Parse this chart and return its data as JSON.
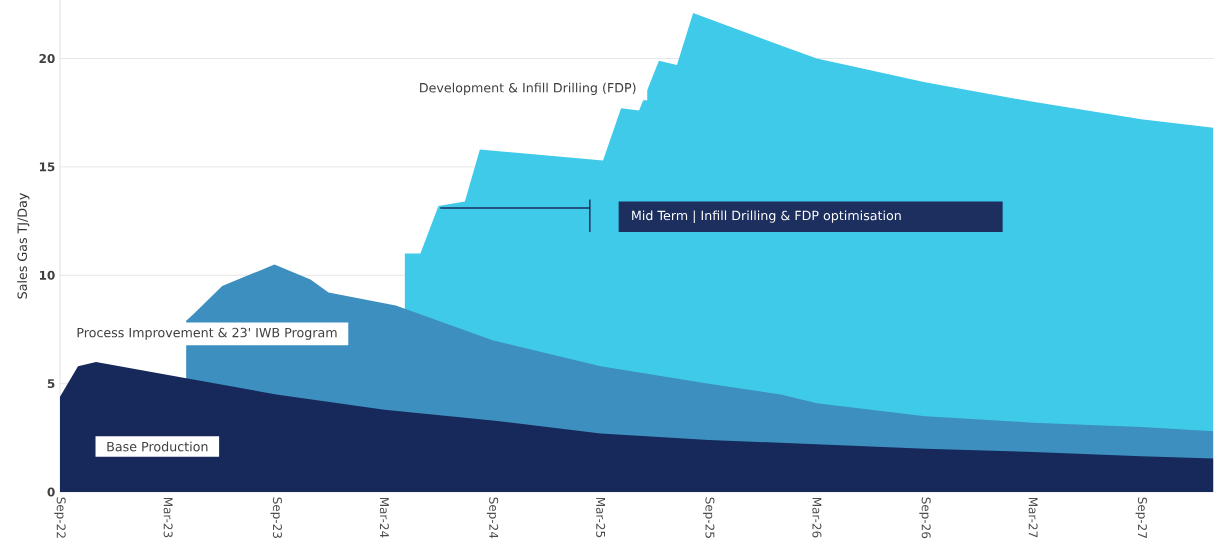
{
  "chart_data": {
    "type": "area",
    "ylabel": "Sales Gas TJ/Day",
    "xlim": [
      "2022-09",
      "2028-01"
    ],
    "xticks": [
      {
        "value": "2022-09",
        "label": "Sep-22"
      },
      {
        "value": "2023-03",
        "label": "Mar-23"
      },
      {
        "value": "2023-09",
        "label": "Sep-23"
      },
      {
        "value": "2024-03",
        "label": "Mar-24"
      },
      {
        "value": "2024-09",
        "label": "Sep-24"
      },
      {
        "value": "2025-03",
        "label": "Mar-25"
      },
      {
        "value": "2025-09",
        "label": "Sep-25"
      },
      {
        "value": "2026-03",
        "label": "Mar-26"
      },
      {
        "value": "2026-09",
        "label": "Sep-26"
      },
      {
        "value": "2027-03",
        "label": "Mar-27"
      },
      {
        "value": "2027-09",
        "label": "Sep-27"
      }
    ],
    "ylim": [
      0,
      22.7
    ],
    "yticks": [
      0,
      5,
      10,
      15,
      20
    ],
    "grid": "y",
    "series": [
      {
        "name": "Base Production",
        "color": "#16295a",
        "x": [
          "2022-09",
          "2022-10",
          "2022-11",
          "2023-03",
          "2023-09",
          "2024-03",
          "2024-09",
          "2025-03",
          "2025-09",
          "2026-03",
          "2026-09",
          "2027-03",
          "2027-09",
          "2028-01"
        ],
        "values": [
          4.4,
          5.8,
          6.0,
          5.4,
          4.5,
          3.8,
          3.3,
          2.7,
          2.4,
          2.2,
          2.0,
          1.85,
          1.65,
          1.55
        ]
      },
      {
        "name": "Process Improvement & 23' IWB Program",
        "color": "#3d8fbf",
        "x": [
          "2023-04",
          "2023-04-13",
          "2023-06",
          "2023-08-28",
          "2023-10-28",
          "2023-11-28",
          "2024-03-20",
          "2024-09",
          "2025-03",
          "2025-09",
          "2026-01",
          "2026-03",
          "2026-09",
          "2027-03",
          "2027-09",
          "2028-01"
        ],
        "values": [
          7.9,
          8.2,
          9.5,
          10.5,
          9.8,
          9.2,
          8.6,
          7.0,
          5.8,
          5.0,
          4.5,
          4.1,
          3.5,
          3.2,
          3.0,
          2.8
        ]
      },
      {
        "name": "Development & Infill Drilling (FDP)",
        "color": "#3fcaea",
        "x": [
          "2024-04-05",
          "2024-05",
          "2024-06",
          "2024-07-15",
          "2024-08-10",
          "2025-03-05",
          "2025-04-05",
          "2025-05-05",
          "2025-06-08",
          "2025-07-08",
          "2025-08-05",
          "2026-01",
          "2026-03",
          "2026-09",
          "2027-03",
          "2027-09",
          "2028-01"
        ],
        "values": [
          11.0,
          11.0,
          13.2,
          13.4,
          15.8,
          15.3,
          17.7,
          17.6,
          19.9,
          19.7,
          22.1,
          20.6,
          20.0,
          18.9,
          18.0,
          17.2,
          16.8
        ]
      }
    ],
    "annotations": [
      "Mid Term | Infill Drilling & FDP optimisation"
    ]
  }
}
